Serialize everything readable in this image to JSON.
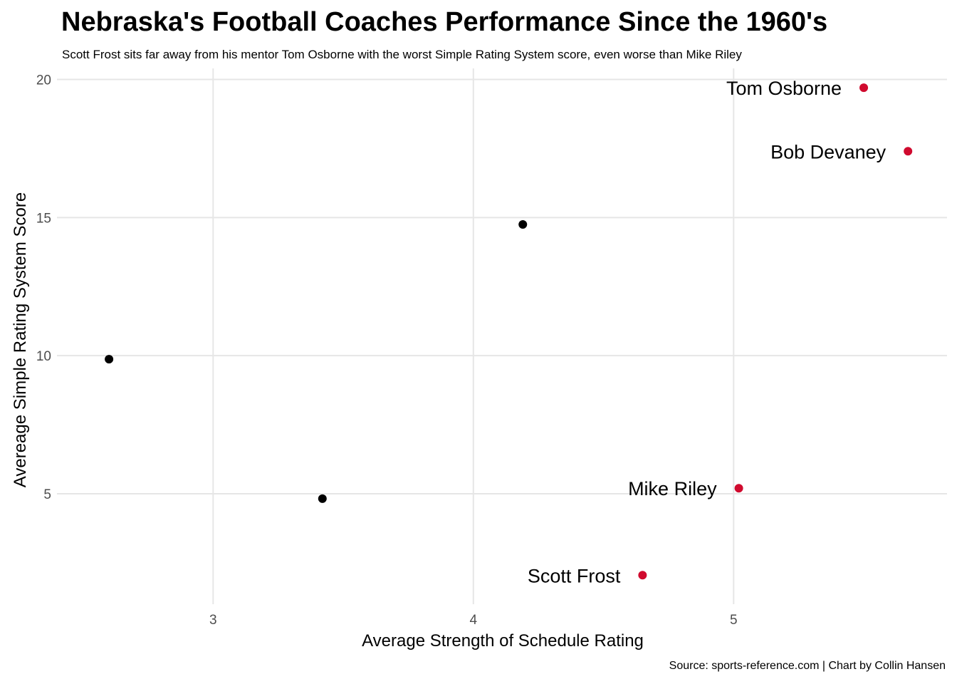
{
  "chart_data": {
    "type": "scatter",
    "title": "Nebraska's Football Coaches Performance Since the 1960's",
    "subtitle": "Scott Frost sits far away from his mentor Tom Osborne with the worst Simple Rating System score, even worse than Mike Riley",
    "caption": "Source: sports-reference.com | Chart by Collin Hansen",
    "xlabel": "Average Strength of Schedule Rating",
    "ylabel": "Avereage Simple Rating System Score",
    "xlim": [
      2.4,
      5.82
    ],
    "ylim": [
      1.0,
      20.4
    ],
    "x_ticks": [
      3,
      4,
      5
    ],
    "y_ticks": [
      5,
      10,
      15,
      20
    ],
    "grid": true,
    "colors": {
      "highlight": "#d00a2e",
      "default": "#000000",
      "grid": "#e6e6e6"
    },
    "points": [
      {
        "x": 5.5,
        "y": 19.7,
        "label": "Tom Osborne",
        "highlight": true
      },
      {
        "x": 5.67,
        "y": 17.4,
        "label": "Bob Devaney",
        "highlight": true
      },
      {
        "x": 4.19,
        "y": 14.75,
        "label": "",
        "highlight": false
      },
      {
        "x": 2.6,
        "y": 9.87,
        "label": "",
        "highlight": false
      },
      {
        "x": 3.42,
        "y": 4.82,
        "label": "",
        "highlight": false
      },
      {
        "x": 5.02,
        "y": 5.2,
        "label": "Mike Riley",
        "highlight": true
      },
      {
        "x": 4.65,
        "y": 2.05,
        "label": "Scott Frost",
        "highlight": true
      }
    ]
  }
}
